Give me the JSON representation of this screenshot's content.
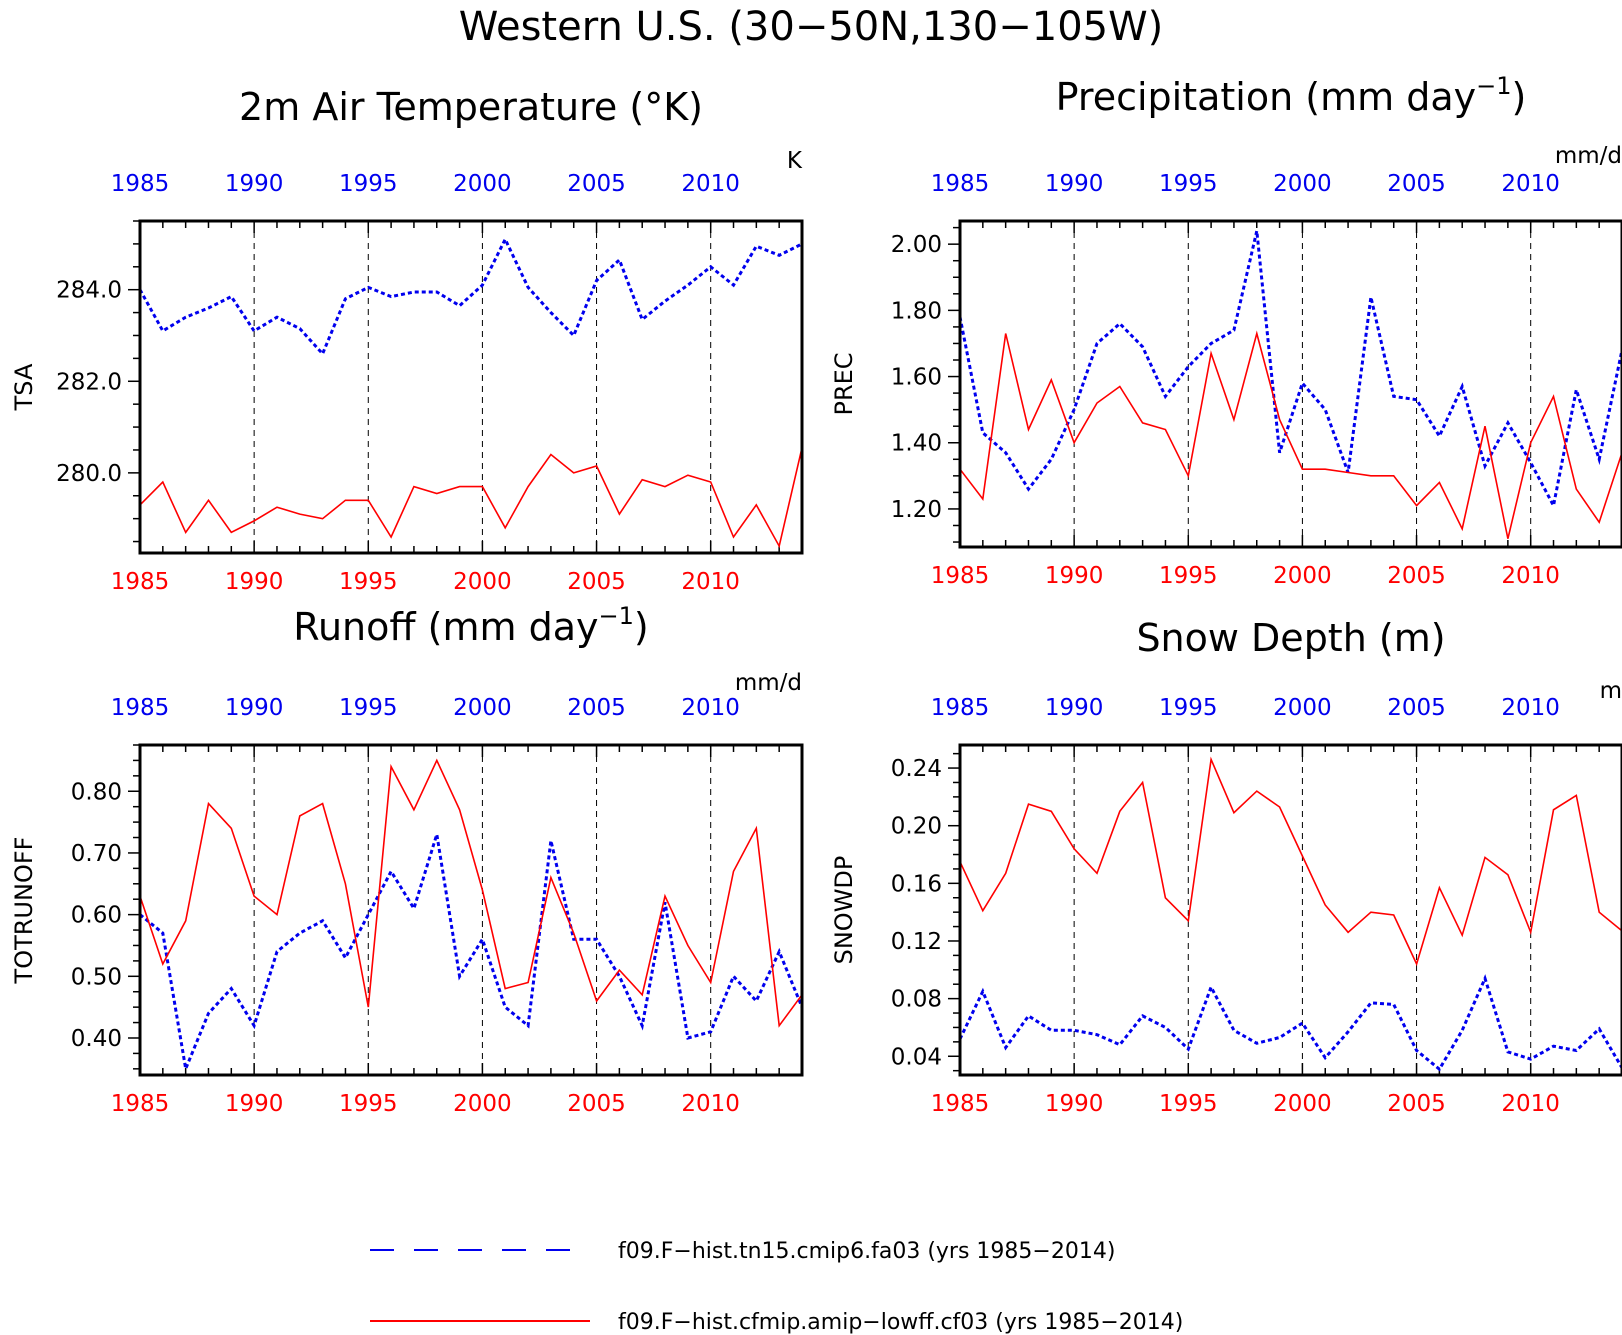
{
  "title": "Western U.S. (30−50N,130−105W)",
  "colors": {
    "series_blue": "#0000ee",
    "series_red": "#ff0000",
    "axis": "#000000"
  },
  "legend": [
    {
      "label": "f09.F−hist.tn15.cmip6.fa03 (yrs 1985−2014)",
      "color": "#0000ee",
      "style": "dashed"
    },
    {
      "label": "f09.F−hist.cfmip.amip−lowff.cf03 (yrs 1985−2014)",
      "color": "#ff0000",
      "style": "solid"
    }
  ],
  "chart_data": [
    {
      "type": "line",
      "title": "2m Air Temperature (°K)",
      "ylabel": "TSA",
      "units": "K",
      "xlim": [
        1985,
        2014
      ],
      "ylim": [
        278.25,
        285.5
      ],
      "yticks": [
        280.0,
        282.0,
        284.0
      ],
      "ytick_labels": [
        "280.0",
        "282.0",
        "284.0"
      ],
      "yminor": 0.5,
      "xticks": [
        1985,
        1990,
        1995,
        2000,
        2005,
        2010
      ],
      "grid": "vertical dashed",
      "x": [
        1985,
        1986,
        1987,
        1988,
        1989,
        1990,
        1991,
        1992,
        1993,
        1994,
        1995,
        1996,
        1997,
        1998,
        1999,
        2000,
        2001,
        2002,
        2003,
        2004,
        2005,
        2006,
        2007,
        2008,
        2009,
        2010,
        2011,
        2012,
        2013,
        2014
      ],
      "series": [
        {
          "name": "f09.F−hist.tn15.cmip6.fa03",
          "values": [
            284.0,
            283.1,
            283.4,
            283.6,
            283.85,
            283.1,
            283.4,
            283.15,
            282.6,
            283.8,
            284.05,
            283.85,
            283.95,
            283.95,
            283.65,
            284.1,
            285.1,
            284.05,
            283.5,
            283.0,
            284.2,
            284.65,
            283.35,
            283.75,
            284.1,
            284.5,
            284.1,
            284.95,
            284.75,
            285.0
          ]
        },
        {
          "name": "f09.F−hist.cfmip.amip−lowff.cf03",
          "values": [
            279.3,
            279.8,
            278.7,
            279.4,
            278.7,
            278.95,
            279.25,
            279.1,
            279.0,
            279.4,
            279.4,
            278.6,
            279.7,
            279.55,
            279.7,
            279.7,
            278.8,
            279.7,
            280.4,
            280.0,
            280.15,
            279.1,
            279.85,
            279.7,
            279.95,
            279.8,
            278.6,
            279.3,
            278.4,
            280.55
          ]
        }
      ]
    },
    {
      "type": "line",
      "title": "Precipitation (mm day",
      "title_sup": "−1",
      "title_end": ")",
      "ylabel": "PREC",
      "units": "mm/d",
      "xlim": [
        1985,
        2014
      ],
      "ylim": [
        1.085,
        2.07
      ],
      "yticks": [
        1.2,
        1.4,
        1.6,
        1.8,
        2.0
      ],
      "ytick_labels": [
        "1.20",
        "1.40",
        "1.60",
        "1.80",
        "2.00"
      ],
      "yminor": 0.05,
      "xticks": [
        1985,
        1990,
        1995,
        2000,
        2005,
        2010
      ],
      "grid": "vertical dashed",
      "x": [
        1985,
        1986,
        1987,
        1988,
        1989,
        1990,
        1991,
        1992,
        1993,
        1994,
        1995,
        1996,
        1997,
        1998,
        1999,
        2000,
        2001,
        2002,
        2003,
        2004,
        2005,
        2006,
        2007,
        2008,
        2009,
        2010,
        2011,
        2012,
        2013,
        2014
      ],
      "series": [
        {
          "name": "f09.F−hist.tn15.cmip6.fa03",
          "values": [
            1.78,
            1.43,
            1.37,
            1.26,
            1.35,
            1.5,
            1.7,
            1.76,
            1.69,
            1.54,
            1.63,
            1.7,
            1.74,
            2.04,
            1.37,
            1.58,
            1.5,
            1.31,
            1.84,
            1.54,
            1.53,
            1.42,
            1.57,
            1.33,
            1.46,
            1.34,
            1.21,
            1.56,
            1.35,
            1.68
          ]
        },
        {
          "name": "f09.F−hist.cfmip.amip−lowff.cf03",
          "values": [
            1.32,
            1.23,
            1.73,
            1.44,
            1.59,
            1.4,
            1.52,
            1.57,
            1.46,
            1.44,
            1.3,
            1.67,
            1.47,
            1.73,
            1.47,
            1.32,
            1.32,
            1.31,
            1.3,
            1.3,
            1.21,
            1.28,
            1.14,
            1.45,
            1.11,
            1.4,
            1.54,
            1.26,
            1.16,
            1.37
          ]
        }
      ]
    },
    {
      "type": "line",
      "title": "Runoff (mm day",
      "title_sup": "−1",
      "title_end": ")",
      "ylabel": "TOTRUNOFF",
      "units": "mm/d",
      "xlim": [
        1985,
        2014
      ],
      "ylim": [
        0.34,
        0.875
      ],
      "yticks": [
        0.4,
        0.5,
        0.6,
        0.7,
        0.8
      ],
      "ytick_labels": [
        "0.40",
        "0.50",
        "0.60",
        "0.70",
        "0.80"
      ],
      "yminor": 0.025,
      "xticks": [
        1985,
        1990,
        1995,
        2000,
        2005,
        2010
      ],
      "grid": "vertical dashed",
      "x": [
        1985,
        1986,
        1987,
        1988,
        1989,
        1990,
        1991,
        1992,
        1993,
        1994,
        1995,
        1996,
        1997,
        1998,
        1999,
        2000,
        2001,
        2002,
        2003,
        2004,
        2005,
        2006,
        2007,
        2008,
        2009,
        2010,
        2011,
        2012,
        2013,
        2014
      ],
      "series": [
        {
          "name": "f09.F−hist.tn15.cmip6.fa03",
          "values": [
            0.6,
            0.57,
            0.35,
            0.44,
            0.48,
            0.42,
            0.54,
            0.57,
            0.59,
            0.53,
            0.6,
            0.67,
            0.61,
            0.73,
            0.5,
            0.56,
            0.45,
            0.42,
            0.72,
            0.56,
            0.56,
            0.5,
            0.42,
            0.62,
            0.4,
            0.41,
            0.5,
            0.46,
            0.54,
            0.45
          ]
        },
        {
          "name": "f09.F−hist.cfmip.amip−lowff.cf03",
          "values": [
            0.63,
            0.52,
            0.59,
            0.78,
            0.74,
            0.63,
            0.6,
            0.76,
            0.78,
            0.65,
            0.45,
            0.84,
            0.77,
            0.85,
            0.77,
            0.64,
            0.48,
            0.49,
            0.66,
            0.57,
            0.46,
            0.51,
            0.47,
            0.63,
            0.55,
            0.49,
            0.67,
            0.74,
            0.42,
            0.47
          ]
        }
      ]
    },
    {
      "type": "line",
      "title": "Snow Depth (m)",
      "ylabel": "SNOWDP",
      "units": "m",
      "xlim": [
        1985,
        2014
      ],
      "ylim": [
        0.027,
        0.256
      ],
      "yticks": [
        0.04,
        0.08,
        0.12,
        0.16,
        0.2,
        0.24
      ],
      "ytick_labels": [
        "0.04",
        "0.08",
        "0.12",
        "0.16",
        "0.20",
        "0.24"
      ],
      "yminor": 0.01,
      "xticks": [
        1985,
        1990,
        1995,
        2000,
        2005,
        2010
      ],
      "grid": "vertical dashed",
      "x": [
        1985,
        1986,
        1987,
        1988,
        1989,
        1990,
        1991,
        1992,
        1993,
        1994,
        1995,
        1996,
        1997,
        1998,
        1999,
        2000,
        2001,
        2002,
        2003,
        2004,
        2005,
        2006,
        2007,
        2008,
        2009,
        2010,
        2011,
        2012,
        2013,
        2014
      ],
      "series": [
        {
          "name": "f09.F−hist.tn15.cmip6.fa03",
          "values": [
            0.052,
            0.085,
            0.046,
            0.068,
            0.058,
            0.058,
            0.055,
            0.048,
            0.068,
            0.06,
            0.045,
            0.088,
            0.058,
            0.049,
            0.053,
            0.063,
            0.039,
            0.057,
            0.077,
            0.076,
            0.044,
            0.031,
            0.058,
            0.094,
            0.043,
            0.038,
            0.047,
            0.044,
            0.059,
            0.032
          ]
        },
        {
          "name": "f09.F−hist.cfmip.amip−lowff.cf03",
          "values": [
            0.175,
            0.141,
            0.167,
            0.215,
            0.21,
            0.184,
            0.167,
            0.21,
            0.23,
            0.15,
            0.134,
            0.246,
            0.209,
            0.224,
            0.213,
            0.179,
            0.145,
            0.126,
            0.14,
            0.138,
            0.104,
            0.157,
            0.124,
            0.178,
            0.166,
            0.126,
            0.211,
            0.221,
            0.14,
            0.127
          ]
        }
      ]
    }
  ]
}
